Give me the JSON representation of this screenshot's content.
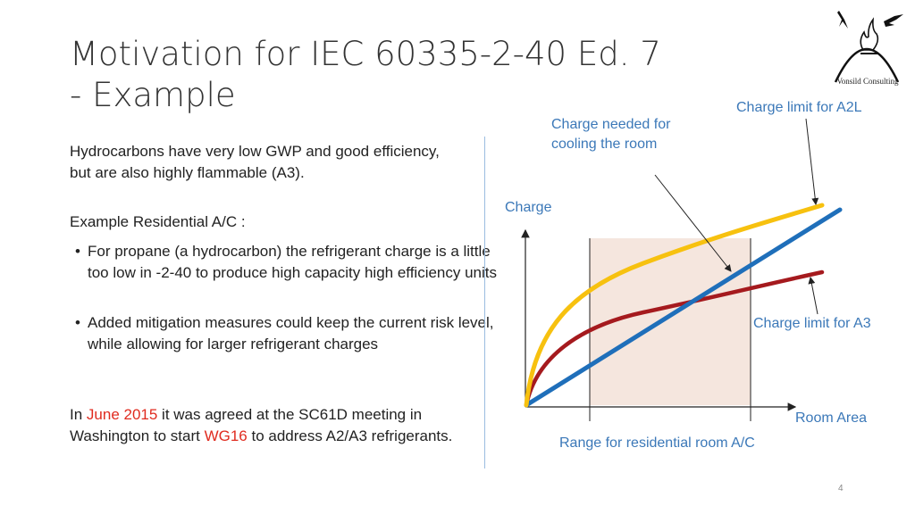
{
  "title_line1": "Motivation for IEC 60335-2-40 Ed. 7",
  "title_line2": "- Example",
  "logo_text": "Vonsild Consulting",
  "intro": "Hydrocarbons have very low GWP and good efficiency, but are also highly flammable (A3).",
  "example_heading": "Example Residential A/C :",
  "bullets": [
    "For propane (a hydrocarbon) the refrigerant charge is a little too low in -2-40 to produce high capacity high efficiency units",
    "Added mitigation measures could keep the current risk level, while allowing for larger refrigerant charges"
  ],
  "closing": {
    "part1": "In ",
    "date": "June 2015",
    "part2": " it was agreed at the SC61D meeting in Washington to start ",
    "wg": "WG16",
    "part3": " to address A2/A3 refrigerants."
  },
  "diagram": {
    "y_axis_label": "Charge",
    "x_axis_label": "Room Area",
    "range_label": "Range for residential room A/C",
    "needed_label_line1": "Charge needed for",
    "needed_label_line2": "cooling the room",
    "a2l_label": "Charge limit for A2L",
    "a3_label": "Charge limit for A3"
  },
  "colors": {
    "a2l_curve": "#f7c10f",
    "a3_curve": "#a51a1e",
    "needed_line": "#1f6fba",
    "range_fill": "#f5e6de",
    "label_blue": "#3b78b8",
    "highlight_red": "#e02b1f"
  },
  "page_number": "4"
}
